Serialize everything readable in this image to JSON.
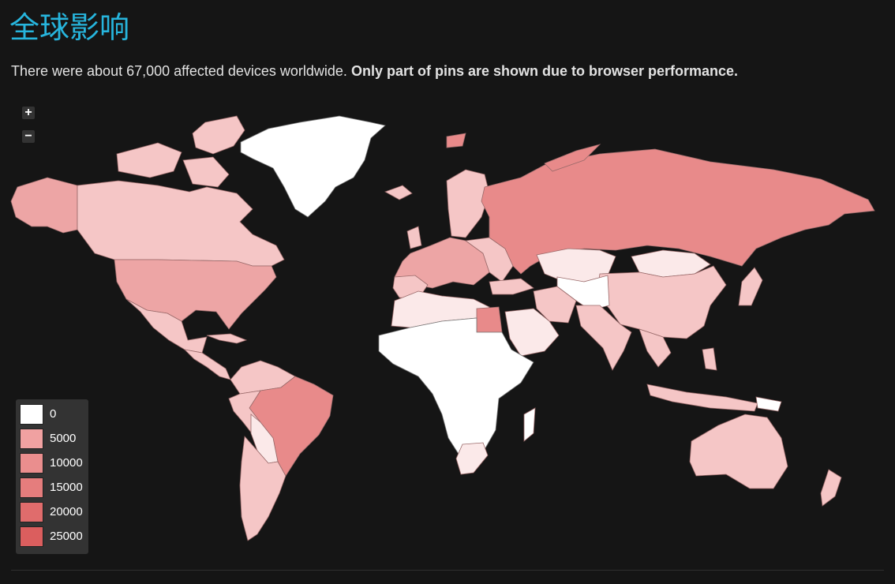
{
  "header": {
    "title": "全球影响",
    "subtitle_regular": "There were about 67,000 affected devices worldwide.",
    "subtitle_bold": "Only part of pins are shown due to browser performance."
  },
  "zoom": {
    "in_label": "+",
    "out_label": "−"
  },
  "legend": {
    "items": [
      {
        "label": "0",
        "color": "#ffffff"
      },
      {
        "label": "5000",
        "color": "#f0a1a1"
      },
      {
        "label": "10000",
        "color": "#ea8e8e"
      },
      {
        "label": "15000",
        "color": "#e57d7d"
      },
      {
        "label": "20000",
        "color": "#e06c6c"
      },
      {
        "label": "25000",
        "color": "#db5e5e"
      }
    ]
  },
  "colors": {
    "title": "#27b5dd",
    "background": "#151515",
    "none": "#ffffff",
    "very_light": "#fbe9e9",
    "light": "#f5c6c6",
    "medium": "#eda5a5",
    "strong": "#e88a8a"
  }
}
